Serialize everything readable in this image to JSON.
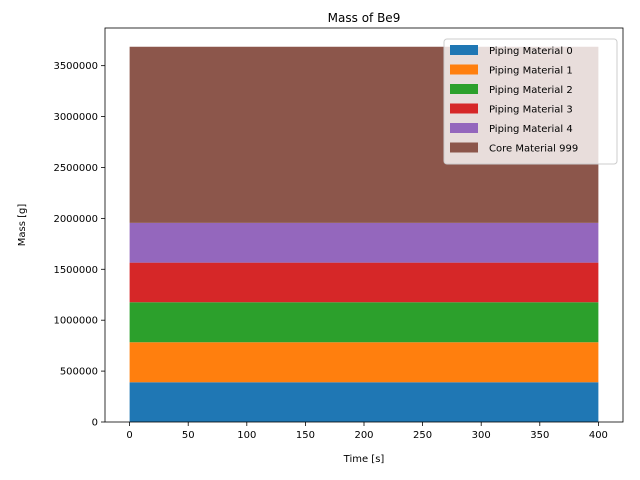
{
  "chart_data": {
    "type": "area",
    "title": "Mass of Be9",
    "xlabel": "Time [s]",
    "ylabel": "Mass [g]",
    "stacked": true,
    "x": [
      0,
      400
    ],
    "xlim": [
      -21,
      421
    ],
    "ylim": [
      0,
      3870000
    ],
    "xticks": [
      0,
      50,
      100,
      150,
      200,
      250,
      300,
      350,
      400
    ],
    "yticks": [
      0,
      500000,
      1000000,
      1500000,
      2000000,
      2500000,
      3000000,
      3500000
    ],
    "grid": false,
    "legend_position": "top-right",
    "series": [
      {
        "name": "Piping Material 0",
        "color": "#1f77b4",
        "values": [
          390000,
          390000
        ]
      },
      {
        "name": "Piping Material 1",
        "color": "#ff7f0e",
        "values": [
          393000,
          393000
        ]
      },
      {
        "name": "Piping Material 2",
        "color": "#2ca02c",
        "values": [
          393000,
          393000
        ]
      },
      {
        "name": "Piping Material 3",
        "color": "#d62728",
        "values": [
          390000,
          390000
        ]
      },
      {
        "name": "Piping Material 4",
        "color": "#9467bd",
        "values": [
          390000,
          390000
        ]
      },
      {
        "name": "Core Material 999",
        "color": "#8c564b",
        "values": [
          1730000,
          1730000
        ]
      }
    ]
  }
}
